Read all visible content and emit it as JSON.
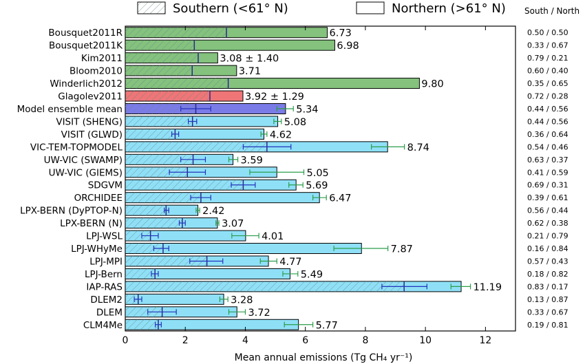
{
  "chart_data": {
    "type": "bar",
    "orientation": "horizontal",
    "legend": [
      {
        "label": "Southern (<61° N)",
        "style": "hatched"
      },
      {
        "label": "Northern (>61° N)",
        "style": "plain"
      }
    ],
    "ratio_header": "South / North",
    "xlabel": "Mean annual emissions (Tg CH₄ yr⁻¹)",
    "xlim": [
      0,
      13
    ],
    "xticks": [
      0,
      2,
      4,
      6,
      8,
      10,
      12
    ],
    "grid": false,
    "colors": {
      "inventory": "#84c27d",
      "glagolev": "#ef7577",
      "ensemble": "#7b7be8",
      "model": "#8fe0f7",
      "southern_line": "#2a2a8a",
      "south_errorbar": "#2233bb",
      "total_errorbar": "#2a9d4a"
    },
    "bars": [
      {
        "name": "Bousquet2011R",
        "total": 6.73,
        "label": "6.73",
        "south": 3.37,
        "fill": "inventory",
        "ratio": "0.50 / 0.50"
      },
      {
        "name": "Bousquet2011K",
        "total": 6.98,
        "label": "6.98",
        "south": 2.3,
        "fill": "inventory",
        "ratio": "0.33 / 0.67"
      },
      {
        "name": "Kim2011",
        "total": 3.08,
        "label": "3.08 ± 1.40",
        "south": 2.43,
        "fill": "inventory",
        "ratio": "0.79 / 0.21"
      },
      {
        "name": "Bloom2010",
        "total": 3.71,
        "label": "3.71",
        "south": 2.23,
        "fill": "inventory",
        "ratio": "0.60 / 0.40"
      },
      {
        "name": "Winderlich2012",
        "total": 9.8,
        "label": "9.80",
        "south": 3.43,
        "fill": "inventory",
        "ratio": "0.35 / 0.65"
      },
      {
        "name": "Glagolev2011",
        "total": 3.92,
        "label": "3.92 ± 1.29",
        "south": 2.82,
        "fill": "glagolev",
        "ratio": "0.72 / 0.28"
      },
      {
        "name": "Model ensemble mean",
        "total": 5.34,
        "label": "5.34",
        "south": 2.35,
        "fill": "ensemble",
        "ratio": "0.44 / 0.56",
        "south_err": [
          1.85,
          2.85
        ],
        "total_err": [
          5.05,
          5.6
        ]
      },
      {
        "name": "VISIT (SHENG)",
        "total": 5.08,
        "label": "5.08",
        "south": 2.24,
        "fill": "model",
        "ratio": "0.44 / 0.56",
        "south_err": [
          2.1,
          2.38
        ],
        "total_err": [
          4.95,
          5.2
        ]
      },
      {
        "name": "VISIT (GLWD)",
        "total": 4.62,
        "label": "4.62",
        "south": 1.66,
        "fill": "model",
        "ratio": "0.36 / 0.64",
        "south_err": [
          1.55,
          1.78
        ],
        "total_err": [
          4.52,
          4.72
        ]
      },
      {
        "name": "VIC-TEM-TOPMODEL",
        "total": 8.74,
        "label": "8.74",
        "south": 4.72,
        "fill": "model",
        "ratio": "0.54 / 0.46",
        "south_err": [
          3.93,
          5.52
        ],
        "total_err": [
          8.2,
          9.3
        ]
      },
      {
        "name": "UW-VIC (SWAMP)",
        "total": 3.59,
        "label": "3.59",
        "south": 2.26,
        "fill": "model",
        "ratio": "0.63 / 0.37",
        "south_err": [
          1.85,
          2.67
        ],
        "total_err": [
          3.45,
          3.75
        ]
      },
      {
        "name": "UW-VIC (GIEMS)",
        "total": 5.05,
        "label": "5.05",
        "south": 2.07,
        "fill": "model",
        "ratio": "0.41 / 0.59",
        "south_err": [
          1.47,
          2.67
        ],
        "total_err": [
          4.15,
          5.95
        ]
      },
      {
        "name": "SDGVM",
        "total": 5.69,
        "label": "5.69",
        "south": 3.93,
        "fill": "model",
        "ratio": "0.69 / 0.31",
        "south_err": [
          3.53,
          4.33
        ],
        "total_err": [
          5.45,
          5.92
        ]
      },
      {
        "name": "ORCHIDEE",
        "total": 6.47,
        "label": "6.47",
        "south": 2.52,
        "fill": "model",
        "ratio": "0.39 / 0.61",
        "south_err": [
          2.18,
          2.85
        ],
        "total_err": [
          6.25,
          6.7
        ]
      },
      {
        "name": "LPX-BERN (DyPTOP-N)",
        "total": 2.42,
        "label": "2.42",
        "south": 1.36,
        "fill": "model",
        "ratio": "0.56 / 0.44",
        "south_err": [
          1.3,
          1.45
        ],
        "total_err": [
          2.36,
          2.48
        ]
      },
      {
        "name": "LPX-BERN (N)",
        "total": 3.07,
        "label": "3.07",
        "south": 1.9,
        "fill": "model",
        "ratio": "0.62 / 0.38",
        "south_err": [
          1.8,
          2.0
        ],
        "total_err": [
          3.02,
          3.12
        ]
      },
      {
        "name": "LPJ-WSL",
        "total": 4.01,
        "label": "4.01",
        "south": 0.84,
        "fill": "model",
        "ratio": "0.21 / 0.79",
        "south_err": [
          0.55,
          1.1
        ],
        "total_err": [
          3.55,
          4.45
        ]
      },
      {
        "name": "LPJ-WHyMe",
        "total": 7.87,
        "label": "7.87",
        "south": 1.26,
        "fill": "model",
        "ratio": "0.16 / 0.84",
        "south_err": [
          0.95,
          1.45
        ],
        "total_err": [
          6.95,
          8.75
        ]
      },
      {
        "name": "LPJ-MPI",
        "total": 4.77,
        "label": "4.77",
        "south": 2.72,
        "fill": "model",
        "ratio": "0.57 / 0.43",
        "south_err": [
          2.15,
          3.25
        ],
        "total_err": [
          4.5,
          5.05
        ]
      },
      {
        "name": "LPJ-Bern",
        "total": 5.49,
        "label": "5.49",
        "south": 0.99,
        "fill": "model",
        "ratio": "0.18 / 0.82",
        "south_err": [
          0.87,
          1.1
        ],
        "total_err": [
          5.25,
          5.75
        ]
      },
      {
        "name": "IAP-RAS",
        "total": 11.19,
        "label": "11.19",
        "south": 9.29,
        "fill": "model",
        "ratio": "0.83 / 0.17",
        "south_err": [
          8.55,
          10.05
        ],
        "total_err": [
          10.85,
          11.5
        ]
      },
      {
        "name": "DLEM2",
        "total": 3.28,
        "label": "3.28",
        "south": 0.43,
        "fill": "model",
        "ratio": "0.13 / 0.87",
        "south_err": [
          0.3,
          0.55
        ],
        "total_err": [
          3.15,
          3.42
        ]
      },
      {
        "name": "DLEM",
        "total": 3.72,
        "label": "3.72",
        "south": 1.23,
        "fill": "model",
        "ratio": "0.33 / 0.67",
        "south_err": [
          0.75,
          1.7
        ],
        "total_err": [
          3.45,
          4.0
        ]
      },
      {
        "name": "CLM4Me",
        "total": 5.77,
        "label": "5.77",
        "south": 1.1,
        "fill": "model",
        "ratio": "0.19 / 0.81",
        "south_err": [
          1.0,
          1.2
        ],
        "total_err": [
          5.3,
          6.25
        ]
      }
    ]
  }
}
